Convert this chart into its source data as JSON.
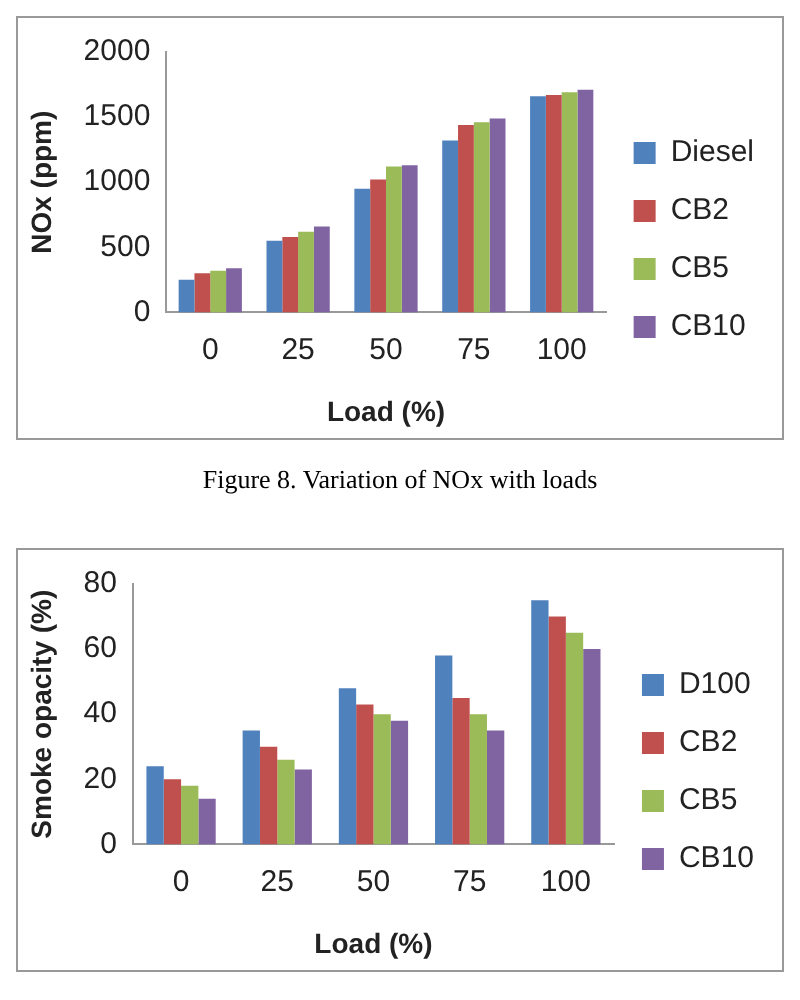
{
  "chart_data": [
    {
      "type": "bar",
      "xlabel": "Load (%)",
      "ylabel": "NOx (ppm)",
      "categories": [
        "0",
        "25",
        "50",
        "75",
        "100"
      ],
      "ylim": [
        0,
        2000
      ],
      "yticks": [
        0,
        500,
        1000,
        1500,
        2000
      ],
      "grid": false,
      "legend": "right",
      "annotations": [
        "Figure 8. Variation of NOx with loads"
      ],
      "series": [
        {
          "name": "Diesel",
          "color": "#4f81bd",
          "values": [
            250,
            550,
            950,
            1320,
            1660
          ]
        },
        {
          "name": "CB2",
          "color": "#c0504d",
          "values": [
            300,
            580,
            1020,
            1440,
            1670
          ]
        },
        {
          "name": "CB5",
          "color": "#9bbb59",
          "values": [
            320,
            620,
            1120,
            1460,
            1690
          ]
        },
        {
          "name": "CB10",
          "color": "#8064a2",
          "values": [
            340,
            660,
            1130,
            1490,
            1710
          ]
        }
      ]
    },
    {
      "type": "bar",
      "xlabel": "Load (%)",
      "ylabel": "Smoke opacity (%)",
      "categories": [
        "0",
        "25",
        "50",
        "75",
        "100"
      ],
      "ylim": [
        0,
        80
      ],
      "yticks": [
        0,
        20,
        40,
        60,
        80
      ],
      "grid": false,
      "legend": "right",
      "series": [
        {
          "name": "D100",
          "color": "#4f81bd",
          "values": [
            24,
            35,
            48,
            58,
            75
          ]
        },
        {
          "name": "CB2",
          "color": "#c0504d",
          "values": [
            20,
            30,
            43,
            45,
            70
          ]
        },
        {
          "name": "CB5",
          "color": "#9bbb59",
          "values": [
            18,
            26,
            40,
            40,
            65
          ]
        },
        {
          "name": "CB10",
          "color": "#8064a2",
          "values": [
            14,
            23,
            38,
            35,
            60
          ]
        }
      ]
    }
  ]
}
